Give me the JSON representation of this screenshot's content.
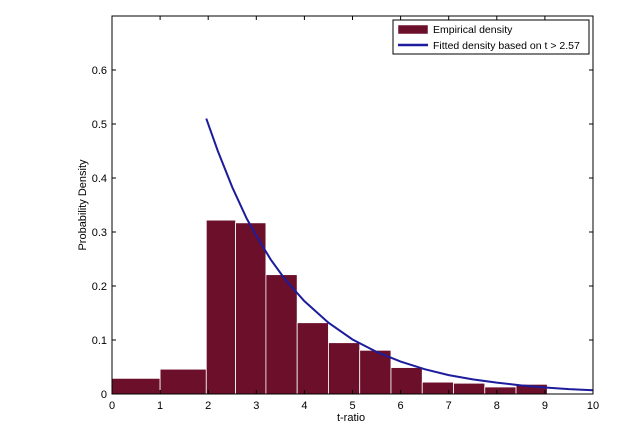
{
  "chart_data": {
    "type": "bar",
    "xlabel": "t-ratio",
    "ylabel": "Probability Density",
    "xlim": [
      0,
      10
    ],
    "ylim": [
      0,
      0.7
    ],
    "xticks": [
      0,
      1,
      2,
      3,
      4,
      5,
      6,
      7,
      8,
      9,
      10
    ],
    "yticks": [
      0,
      0.1,
      0.2,
      0.3,
      0.4,
      0.5,
      0.6
    ],
    "ytick_labels": [
      "0",
      "0.1",
      "0.2",
      "0.3",
      "0.4",
      "0.5",
      "0.6"
    ],
    "grid": false,
    "legend_position": "top-right",
    "colors": {
      "bars": "#6b0f2a",
      "bar_edge": "#ffffff",
      "curve": "#1c1c9c"
    },
    "series": [
      {
        "name": "Empirical density",
        "type": "histogram",
        "bins": [
          {
            "x0": 0.0,
            "x1": 1.0,
            "value": 0.029
          },
          {
            "x0": 1.0,
            "x1": 1.96,
            "value": 0.046
          },
          {
            "x0": 1.96,
            "x1": 2.57,
            "value": 0.322
          },
          {
            "x0": 2.57,
            "x1": 3.2,
            "value": 0.317
          },
          {
            "x0": 3.2,
            "x1": 3.85,
            "value": 0.221
          },
          {
            "x0": 3.85,
            "x1": 4.5,
            "value": 0.132
          },
          {
            "x0": 4.5,
            "x1": 5.15,
            "value": 0.095
          },
          {
            "x0": 5.15,
            "x1": 5.8,
            "value": 0.081
          },
          {
            "x0": 5.8,
            "x1": 6.45,
            "value": 0.049
          },
          {
            "x0": 6.45,
            "x1": 7.1,
            "value": 0.022
          },
          {
            "x0": 7.1,
            "x1": 7.75,
            "value": 0.02
          },
          {
            "x0": 7.75,
            "x1": 8.4,
            "value": 0.013
          },
          {
            "x0": 8.4,
            "x1": 9.05,
            "value": 0.018
          }
        ]
      },
      {
        "name": "Fitted density based on t > 2.57",
        "type": "line",
        "x": [
          1.96,
          2.2,
          2.5,
          2.8,
          3.0,
          3.3,
          3.6,
          4.0,
          4.5,
          5.0,
          5.5,
          6.0,
          6.5,
          7.0,
          7.5,
          8.0,
          8.5,
          9.0,
          9.5,
          10.0
        ],
        "y": [
          0.51,
          0.45,
          0.383,
          0.325,
          0.293,
          0.249,
          0.212,
          0.172,
          0.132,
          0.101,
          0.078,
          0.06,
          0.046,
          0.035,
          0.027,
          0.021,
          0.016,
          0.012,
          0.009,
          0.007
        ]
      }
    ]
  }
}
